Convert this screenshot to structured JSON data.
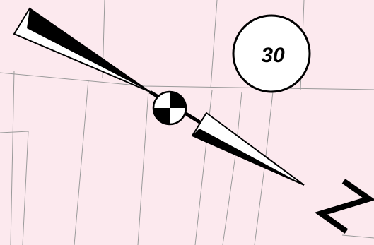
{
  "map": {
    "background_color": "#fce9ee",
    "parcel_line_color": "#9a9a9a",
    "sheet_number": "30",
    "north_arrow": {
      "label": "N",
      "icon": "north-arrow-icon"
    }
  }
}
